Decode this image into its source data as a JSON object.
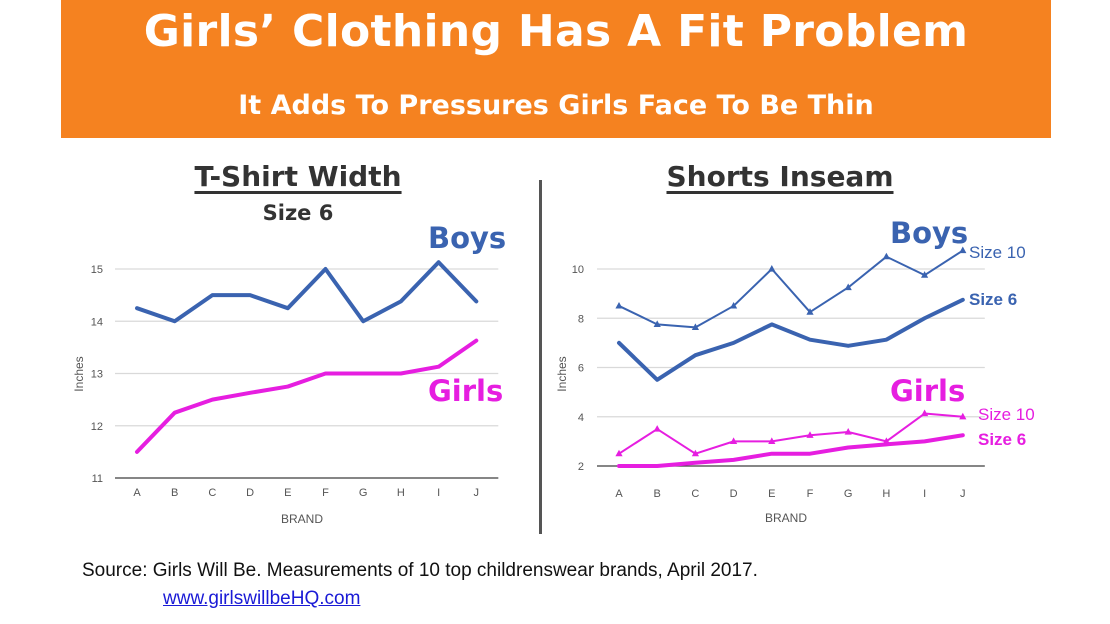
{
  "header": {
    "title": "Girls’ Clothing Has A Fit Problem",
    "subtitle": "It Adds To Pressures Girls Face To Be Thin"
  },
  "colors": {
    "banner": "#f58220",
    "boys": "#3a63b0",
    "girls": "#e61ee0",
    "grid": "#d9d9d9",
    "text": "#333333"
  },
  "chart_data": [
    {
      "type": "line",
      "title": "T-Shirt Width",
      "subtitle": "Size 6",
      "xlabel": "BRAND",
      "ylabel": "Inches",
      "categories": [
        "A",
        "B",
        "C",
        "D",
        "E",
        "F",
        "G",
        "H",
        "I",
        "J"
      ],
      "ylim": [
        11,
        15
      ],
      "yticks": [
        11,
        12,
        13,
        14,
        15
      ],
      "grid": true,
      "series": [
        {
          "name": "Boys",
          "values": [
            14.25,
            14.0,
            14.5,
            14.5,
            14.25,
            15.0,
            14.0,
            14.38,
            15.13,
            14.38
          ]
        },
        {
          "name": "Girls",
          "values": [
            11.5,
            12.25,
            12.5,
            12.63,
            12.75,
            13.0,
            13.0,
            13.0,
            13.13,
            13.63
          ]
        }
      ]
    },
    {
      "type": "line",
      "title": "Shorts Inseam",
      "xlabel": "BRAND",
      "ylabel": "Inches",
      "categories": [
        "A",
        "B",
        "C",
        "D",
        "E",
        "F",
        "G",
        "H",
        "I",
        "J"
      ],
      "ylim": [
        2,
        10
      ],
      "yticks": [
        2,
        4,
        6,
        8,
        10
      ],
      "grid": true,
      "group_labels": [
        "Boys",
        "Girls"
      ],
      "series": [
        {
          "name": "Size 10",
          "group": "Boys",
          "values": [
            8.5,
            7.75,
            7.63,
            8.5,
            10.0,
            8.25,
            9.25,
            10.5,
            9.75,
            10.75
          ]
        },
        {
          "name": "Size 6",
          "group": "Boys",
          "values": [
            7.0,
            5.5,
            6.5,
            7.0,
            7.75,
            7.13,
            6.88,
            7.13,
            8.0,
            8.75
          ]
        },
        {
          "name": "Size 10",
          "group": "Girls",
          "values": [
            2.5,
            3.5,
            2.5,
            3.0,
            3.0,
            3.25,
            3.38,
            3.0,
            4.13,
            4.0
          ]
        },
        {
          "name": "Size 6",
          "group": "Girls",
          "values": [
            2.0,
            2.0,
            2.13,
            2.25,
            2.5,
            2.5,
            2.75,
            2.88,
            3.0,
            3.25
          ]
        }
      ]
    }
  ],
  "footer": {
    "source": "Source: Girls Will Be. Measurements of 10 top childrenswear brands, April 2017.",
    "link": "www.girlswillbeHQ.com"
  }
}
